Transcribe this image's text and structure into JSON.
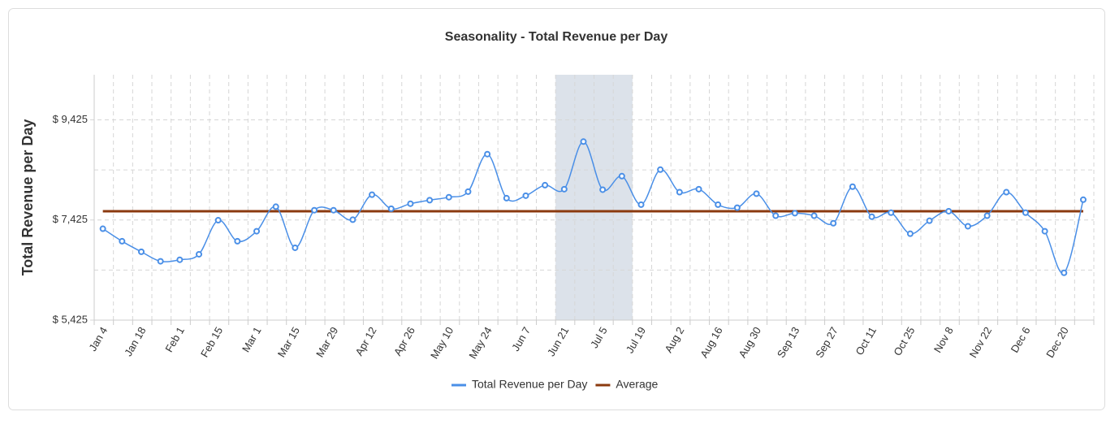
{
  "chart_data": {
    "type": "line",
    "title": "Seasonality - Total Revenue per Day",
    "y_label": "Total Revenue per Day",
    "categories": [
      "Jan 4",
      null,
      "Jan 18",
      null,
      "Feb 1",
      null,
      "Feb 15",
      null,
      "Mar 1",
      null,
      "Mar 15",
      null,
      "Mar 29",
      null,
      "Apr 12",
      null,
      "Apr 26",
      null,
      "May 10",
      null,
      "May 24",
      null,
      "Jun 7",
      null,
      "Jun 21",
      null,
      "Jul 5",
      null,
      "Jul 19",
      null,
      "Aug 2",
      null,
      "Aug 16",
      null,
      "Aug 30",
      null,
      "Sep 13",
      null,
      "Sep 27",
      null,
      "Oct 11",
      null,
      "Oct 25",
      null,
      "Nov 8",
      null,
      "Nov 22",
      null,
      "Dec 6",
      null,
      "Dec 20",
      null
    ],
    "series": [
      {
        "name": "Total Revenue per Day",
        "color": "#4a8fe7",
        "values": [
          7250,
          7000,
          6790,
          6600,
          6630,
          6740,
          7420,
          7000,
          7200,
          7690,
          6870,
          7620,
          7620,
          7430,
          7930,
          7650,
          7750,
          7820,
          7880,
          7990,
          8740,
          7860,
          7910,
          8120,
          8040,
          8990,
          8030,
          8300,
          7730,
          8430,
          7980,
          8040,
          7730,
          7670,
          7950,
          7510,
          7560,
          7510,
          7360,
          8090,
          7490,
          7570,
          7150,
          7410,
          7600,
          7300,
          7510,
          7980,
          7570,
          7200,
          6370,
          7830
        ]
      },
      {
        "name": "Average",
        "color": "#8b3a0f",
        "value": 7600
      }
    ],
    "ylim": [
      5425,
      10325
    ],
    "yticks": [
      {
        "value": 5425,
        "label": "$ 5,425"
      },
      {
        "value": 7425,
        "label": "$ 7,425"
      },
      {
        "value": 9425,
        "label": "$ 9,425"
      }
    ],
    "ygrid_minor": [
      6425,
      8425
    ],
    "highlight_index_range": [
      24,
      27
    ],
    "highlight_color": "#dce2ea",
    "grid": true,
    "legend": "bottom"
  }
}
